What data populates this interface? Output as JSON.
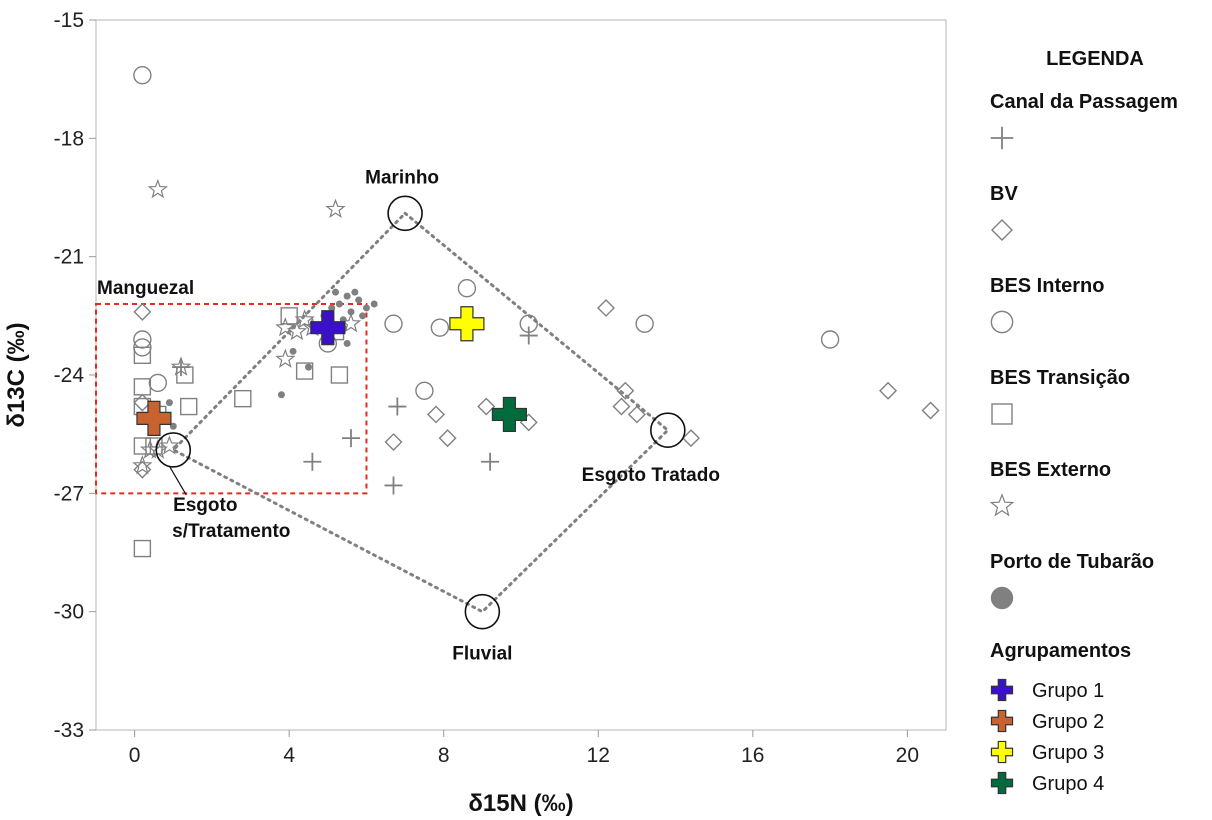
{
  "chart_data": {
    "type": "scatter",
    "xlabel": "δ15N (‰)",
    "ylabel": "δ13C (‰)",
    "xlim": [
      -1,
      21
    ],
    "ylim": [
      -33,
      -15
    ],
    "x_ticks": [
      0,
      4,
      8,
      12,
      16,
      20
    ],
    "y_ticks": [
      -15,
      -18,
      -21,
      -24,
      -27,
      -30,
      -33
    ],
    "grid": false,
    "legend_placement": "right",
    "legend_title": "LEGENDA",
    "series": [
      {
        "name": "Canal da Passagem",
        "marker": "plus",
        "color": "#808080",
        "points": [
          [
            10.2,
            -23.0
          ],
          [
            6.8,
            -24.8
          ],
          [
            5.6,
            -25.6
          ],
          [
            4.6,
            -26.2
          ],
          [
            6.7,
            -26.8
          ],
          [
            9.2,
            -26.2
          ],
          [
            1.2,
            -23.8
          ]
        ]
      },
      {
        "name": "BV",
        "marker": "diamond",
        "color": "#808080",
        "points": [
          [
            0.2,
            -22.4
          ],
          [
            0.2,
            -24.7
          ],
          [
            0.2,
            -26.4
          ],
          [
            6.7,
            -25.7
          ],
          [
            7.8,
            -25.0
          ],
          [
            8.1,
            -25.6
          ],
          [
            9.1,
            -24.8
          ],
          [
            10.2,
            -25.2
          ],
          [
            12.2,
            -22.3
          ],
          [
            12.6,
            -24.8
          ],
          [
            12.7,
            -24.4
          ],
          [
            13.0,
            -25.0
          ],
          [
            14.4,
            -25.6
          ],
          [
            19.5,
            -24.4
          ],
          [
            20.6,
            -24.9
          ]
        ]
      },
      {
        "name": "BES Interno",
        "marker": "circle",
        "color": "#808080",
        "points": [
          [
            0.2,
            -16.4
          ],
          [
            0.2,
            -23.1
          ],
          [
            0.2,
            -23.3
          ],
          [
            0.6,
            -24.2
          ],
          [
            6.7,
            -22.7
          ],
          [
            7.5,
            -24.4
          ],
          [
            7.9,
            -22.8
          ],
          [
            8.6,
            -21.8
          ],
          [
            10.2,
            -22.7
          ],
          [
            13.2,
            -22.7
          ],
          [
            18.0,
            -23.1
          ],
          [
            5.0,
            -23.2
          ]
        ]
      },
      {
        "name": "BES Transição",
        "marker": "square",
        "color": "#808080",
        "points": [
          [
            0.2,
            -23.5
          ],
          [
            0.2,
            -24.3
          ],
          [
            0.2,
            -24.8
          ],
          [
            0.2,
            -25.8
          ],
          [
            0.6,
            -25.0
          ],
          [
            1.3,
            -24.0
          ],
          [
            1.4,
            -24.8
          ],
          [
            2.8,
            -24.6
          ],
          [
            4.0,
            -22.5
          ],
          [
            4.4,
            -23.9
          ],
          [
            5.3,
            -24.0
          ],
          [
            5.2,
            -22.9
          ],
          [
            0.2,
            -28.4
          ],
          [
            0.5,
            -25.8
          ]
        ]
      },
      {
        "name": "BES Externo",
        "marker": "star",
        "color": "#808080",
        "points": [
          [
            0.6,
            -19.3
          ],
          [
            5.2,
            -19.8
          ],
          [
            1.2,
            -23.8
          ],
          [
            3.9,
            -23.6
          ],
          [
            3.9,
            -22.8
          ],
          [
            4.2,
            -22.9
          ],
          [
            4.4,
            -22.6
          ],
          [
            4.6,
            -22.8
          ],
          [
            5.6,
            -22.7
          ],
          [
            0.2,
            -26.3
          ],
          [
            0.4,
            -25.9
          ],
          [
            0.6,
            -25.9
          ],
          [
            0.9,
            -25.8
          ]
        ]
      },
      {
        "name": "Porto de Tubarão",
        "marker": "dot",
        "color": "#808080",
        "points": [
          [
            3.8,
            -24.5
          ],
          [
            4.1,
            -23.4
          ],
          [
            4.5,
            -23.8
          ],
          [
            4.9,
            -22.5
          ],
          [
            5.1,
            -22.3
          ],
          [
            5.3,
            -22.2
          ],
          [
            5.4,
            -22.6
          ],
          [
            5.5,
            -22.0
          ],
          [
            5.6,
            -22.4
          ],
          [
            5.7,
            -21.9
          ],
          [
            5.8,
            -22.1
          ],
          [
            5.9,
            -22.5
          ],
          [
            6.0,
            -22.3
          ],
          [
            6.2,
            -22.2
          ],
          [
            5.2,
            -21.9
          ],
          [
            5.4,
            -22.8
          ],
          [
            5.0,
            -22.9
          ],
          [
            5.5,
            -23.2
          ],
          [
            0.9,
            -24.7
          ],
          [
            1.0,
            -25.3
          ]
        ]
      },
      {
        "name": "Grupo 1",
        "marker": "bold-plus",
        "color": "#3a10c8",
        "points": [
          [
            5.0,
            -22.8
          ]
        ]
      },
      {
        "name": "Grupo 2",
        "marker": "bold-plus",
        "color": "#c8622f",
        "points": [
          [
            0.5,
            -25.1
          ]
        ]
      },
      {
        "name": "Grupo 3",
        "marker": "bold-plus",
        "color": "#ffff00",
        "points": [
          [
            8.6,
            -22.7
          ]
        ]
      },
      {
        "name": "Grupo 4",
        "marker": "bold-plus",
        "color": "#006b3c",
        "points": [
          [
            9.7,
            -25.0
          ]
        ]
      }
    ],
    "sources": [
      {
        "label": "Marinho",
        "x": 7.0,
        "y": -19.9
      },
      {
        "label": "Esgoto Tratado",
        "x": 13.8,
        "y": -25.4
      },
      {
        "label": "Fluvial",
        "x": 9.0,
        "y": -30.0
      },
      {
        "label": "Esgoto s/Tratamento",
        "x": 1.0,
        "y": -25.9
      }
    ],
    "mixing_polygon_order": [
      "Marinho",
      "Esgoto Tratado",
      "Fluvial",
      "Esgoto s/Tratamento"
    ],
    "highlight_box": {
      "label": "Manguezal",
      "x_range": [
        -1,
        6
      ],
      "y_range": [
        -27,
        -22.2
      ],
      "color": "#e8291c"
    },
    "legend_groups": [
      {
        "title": "Canal da Passagem",
        "marker": "plus"
      },
      {
        "title": "BV",
        "marker": "diamond"
      },
      {
        "title": "BES Interno",
        "marker": "circle"
      },
      {
        "title": "BES Transição",
        "marker": "square"
      },
      {
        "title": "BES Externo",
        "marker": "star"
      },
      {
        "title": "Porto de Tubarão",
        "marker": "dot"
      }
    ],
    "legend_agrupamentos_title": "Agrupamentos",
    "legend_agrupamentos": [
      {
        "label": "Grupo 1",
        "color": "#3a10c8"
      },
      {
        "label": "Grupo 2",
        "color": "#c8622f"
      },
      {
        "label": "Grupo 3",
        "color": "#ffff00"
      },
      {
        "label": "Grupo 4",
        "color": "#006b3c"
      }
    ]
  }
}
